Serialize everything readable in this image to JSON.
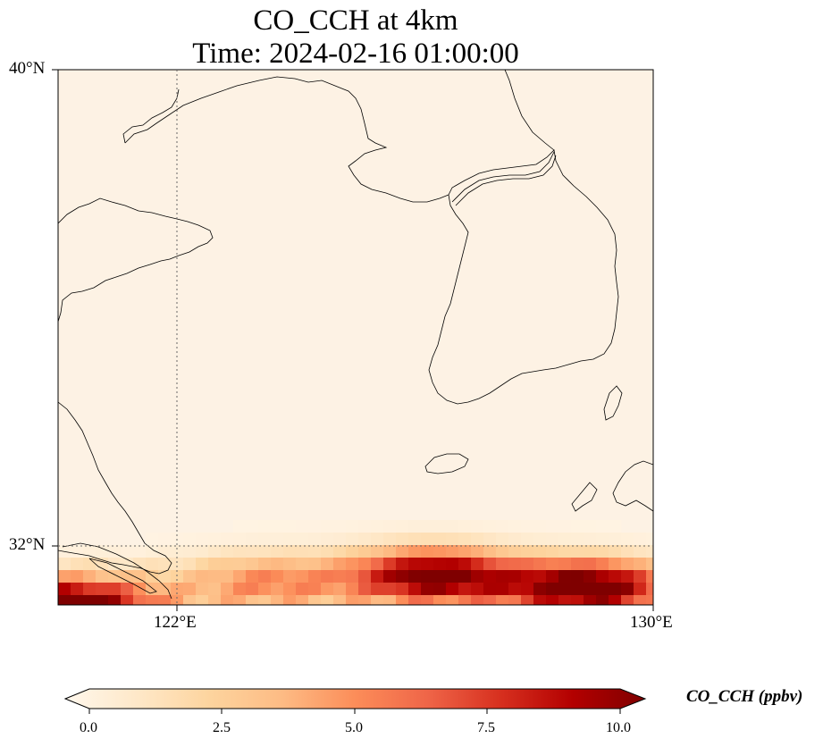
{
  "title": {
    "line1": "CO_CCH at 4km",
    "line2": "Time: 2024-02-16 01:00:00"
  },
  "map": {
    "lat_range": [
      31,
      40
    ],
    "lon_range": [
      120,
      130
    ],
    "lat_ticks": [
      "40°N",
      "32°N"
    ],
    "lon_ticks": [
      "122°E",
      "130°E"
    ],
    "gridlines": {
      "lat": 32,
      "lon": 122,
      "style": "dotted"
    }
  },
  "colorbar": {
    "label": "CO_CCH (ppbv)",
    "ticks": [
      "0.0",
      "2.5",
      "5.0",
      "7.5",
      "10.0"
    ],
    "range": [
      0,
      10
    ],
    "extend": "both",
    "colormap": "OrRd",
    "colors": [
      "#fff7ec",
      "#fee8c8",
      "#fdd49e",
      "#fdbb84",
      "#fc8d59",
      "#ef6548",
      "#d7301f",
      "#b30000",
      "#7f0000"
    ]
  },
  "field": {
    "background_value": 0.3,
    "hotspots": [
      {
        "lon": 128.9,
        "lat": 31.3,
        "value": 10
      },
      {
        "lon": 126.3,
        "lat": 31.5,
        "value": 9.6
      },
      {
        "lon": 120.2,
        "lat": 31.0,
        "value": 10
      },
      {
        "lon": 123.5,
        "lat": 31.4,
        "value": 4
      }
    ]
  }
}
